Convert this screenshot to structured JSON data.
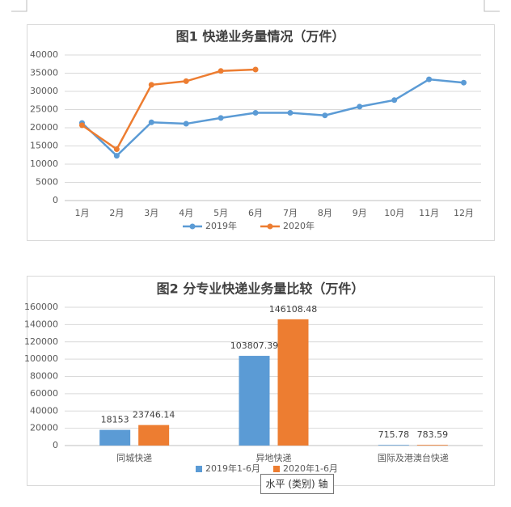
{
  "chart_data": [
    {
      "type": "line",
      "title": "图1  快递业务量情况（万件）",
      "categories": [
        "1月",
        "2月",
        "3月",
        "4月",
        "5月",
        "6月",
        "7月",
        "8月",
        "9月",
        "10月",
        "11月",
        "12月"
      ],
      "series": [
        {
          "name": "2019年",
          "color": "#5b9bd5",
          "values": [
            21300,
            12300,
            21500,
            21100,
            22700,
            24100,
            24100,
            23400,
            25800,
            27600,
            33300,
            32400
          ]
        },
        {
          "name": "2020年",
          "color": "#ed7d31",
          "values": [
            20700,
            14100,
            31800,
            32800,
            35600,
            36000,
            null,
            null,
            null,
            null,
            null,
            null
          ]
        }
      ],
      "ylim": [
        0,
        40000
      ],
      "yticks": [
        0,
        5000,
        10000,
        15000,
        20000,
        25000,
        30000,
        35000,
        40000
      ],
      "grid": true,
      "legend": "bottom"
    },
    {
      "type": "bar",
      "title": "图2  分专业快递业务量比较（万件）",
      "categories": [
        "同城快递",
        "异地快递",
        "国际及港澳台快递"
      ],
      "series": [
        {
          "name": "2019年1-6月",
          "color": "#5b9bd5",
          "values": [
            18153,
            103807.39,
            715.78
          ]
        },
        {
          "name": "2020年1-6月",
          "color": "#ed7d31",
          "values": [
            23746.14,
            146108.48,
            783.59
          ]
        }
      ],
      "ylim": [
        0,
        160000
      ],
      "yticks": [
        0,
        20000,
        40000,
        60000,
        80000,
        100000,
        120000,
        140000,
        160000
      ],
      "grid": true,
      "legend": "bottom"
    }
  ],
  "tooltip": "水平 (类别) 轴"
}
